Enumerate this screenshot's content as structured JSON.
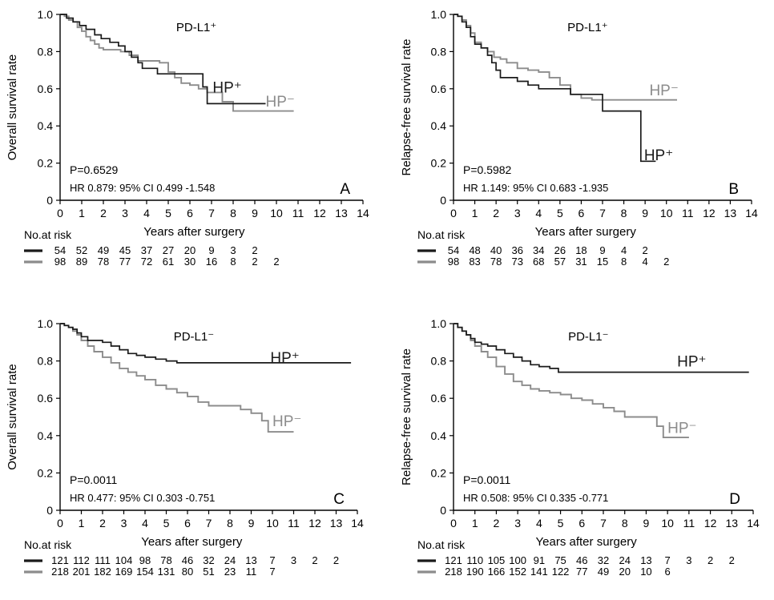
{
  "colors": {
    "hp_pos": "#1a1a1a",
    "hp_neg": "#8c8c8c",
    "axis": "#000000"
  },
  "chart_data": [
    {
      "type": "line",
      "title": "PD-L1⁺",
      "letter": "A",
      "xlabel": "Years after surgery",
      "ylabel": "Overall survival rate",
      "xlim": [
        0,
        14
      ],
      "ylim": [
        0,
        1.0
      ],
      "xticks": [
        "0",
        "1",
        "2",
        "3",
        "4",
        "5",
        "6",
        "7",
        "8",
        "9",
        "10",
        "11",
        "12",
        "13",
        "14"
      ],
      "yticks": [
        "0",
        "0.2",
        "0.4",
        "0.6",
        "0.8",
        "1.0"
      ],
      "p_value": "P=0.6529",
      "hr_text": "HR 0.879: 95% CI 0.499 -1.548",
      "series": [
        {
          "name": "HP⁺",
          "label_pos": [
            7.05,
            0.61
          ],
          "x": [
            0,
            0.3,
            0.6,
            0.9,
            1.2,
            1.6,
            1.9,
            2.3,
            2.7,
            3.0,
            3.3,
            3.6,
            3.8,
            4.5,
            5.2,
            5.8,
            6.4,
            6.6,
            6.8,
            7.5,
            8.5,
            9.5
          ],
          "y": [
            1.0,
            0.98,
            0.96,
            0.94,
            0.92,
            0.89,
            0.87,
            0.85,
            0.83,
            0.8,
            0.77,
            0.74,
            0.71,
            0.68,
            0.68,
            0.68,
            0.68,
            0.61,
            0.52,
            0.52,
            0.52,
            0.52
          ]
        },
        {
          "name": "HP⁻",
          "label_pos": [
            9.5,
            0.535
          ],
          "x": [
            0,
            0.2,
            0.4,
            0.6,
            0.8,
            1.0,
            1.2,
            1.4,
            1.6,
            1.8,
            2.0,
            2.4,
            2.8,
            3.2,
            3.6,
            4.0,
            4.6,
            5.0,
            5.3,
            5.6,
            6.0,
            6.4,
            6.8,
            7.5,
            8.0,
            9.0,
            10.0,
            10.8
          ],
          "y": [
            1.0,
            0.99,
            0.97,
            0.96,
            0.93,
            0.91,
            0.88,
            0.86,
            0.84,
            0.82,
            0.81,
            0.81,
            0.8,
            0.78,
            0.75,
            0.75,
            0.74,
            0.69,
            0.66,
            0.63,
            0.62,
            0.6,
            0.58,
            0.53,
            0.48,
            0.48,
            0.48,
            0.48
          ]
        }
      ],
      "risk_table": {
        "title": "No.at risk",
        "rows": [
          {
            "name": "HP⁺",
            "values": [
              "54",
              "52",
              "49",
              "45",
              "37",
              "27",
              "20",
              "9",
              "3",
              "2"
            ]
          },
          {
            "name": "HP⁻",
            "values": [
              "98",
              "89",
              "78",
              "77",
              "72",
              "61",
              "30",
              "16",
              "8",
              "2",
              "2"
            ]
          }
        ]
      }
    },
    {
      "type": "line",
      "title": "PD-L1⁺",
      "letter": "B",
      "xlabel": "Years after surgery",
      "ylabel": "Relapse-free survival  rate",
      "xlim": [
        0,
        14
      ],
      "ylim": [
        0,
        1.0
      ],
      "xticks": [
        "0",
        "1",
        "2",
        "3",
        "4",
        "5",
        "6",
        "7",
        "8",
        "9",
        "10",
        "11",
        "12",
        "13",
        "14"
      ],
      "yticks": [
        "0",
        "0.2",
        "0.4",
        "0.6",
        "0.8",
        "1.0"
      ],
      "p_value": "P=0.5982",
      "hr_text": "HR 1.149: 95% CI 0.683 -1.935",
      "series": [
        {
          "name": "HP⁺",
          "label_pos": [
            8.95,
            0.245
          ],
          "x": [
            0,
            0.2,
            0.4,
            0.6,
            0.8,
            1.0,
            1.3,
            1.6,
            1.8,
            2.0,
            2.2,
            2.5,
            3.0,
            3.5,
            4.0,
            4.5,
            5.0,
            5.5,
            6.0,
            6.5,
            7.0,
            8.0,
            8.8,
            9.5
          ],
          "y": [
            1.0,
            0.99,
            0.96,
            0.93,
            0.88,
            0.84,
            0.82,
            0.78,
            0.74,
            0.7,
            0.66,
            0.66,
            0.64,
            0.62,
            0.6,
            0.6,
            0.6,
            0.57,
            0.57,
            0.57,
            0.48,
            0.48,
            0.21,
            0.21
          ]
        },
        {
          "name": "HP⁻",
          "label_pos": [
            9.2,
            0.595
          ],
          "x": [
            0,
            0.2,
            0.4,
            0.6,
            0.8,
            1.0,
            1.3,
            1.6,
            1.9,
            2.2,
            2.5,
            3.0,
            3.5,
            4.0,
            4.5,
            5.0,
            5.5,
            6.0,
            6.5,
            7.0,
            8.0,
            9.0,
            10.5
          ],
          "y": [
            1.0,
            0.99,
            0.97,
            0.94,
            0.9,
            0.85,
            0.82,
            0.8,
            0.77,
            0.76,
            0.74,
            0.71,
            0.7,
            0.69,
            0.66,
            0.62,
            0.57,
            0.55,
            0.54,
            0.54,
            0.54,
            0.54,
            0.54
          ]
        }
      ],
      "risk_table": {
        "title": "No.at risk",
        "rows": [
          {
            "name": "HP⁺",
            "values": [
              "54",
              "48",
              "40",
              "36",
              "34",
              "26",
              "18",
              "9",
              "4",
              "2"
            ]
          },
          {
            "name": "HP⁻",
            "values": [
              "98",
              "83",
              "78",
              "73",
              "68",
              "57",
              "31",
              "15",
              "8",
              "4",
              "2"
            ]
          }
        ]
      }
    },
    {
      "type": "line",
      "title": "PD-L1⁻",
      "letter": "C",
      "xlabel": "Years after surgery",
      "ylabel": "Overall survival rate",
      "xlim": [
        0,
        14
      ],
      "ylim": [
        0,
        1.0
      ],
      "xticks": [
        "0",
        "1",
        "2",
        "3",
        "4",
        "5",
        "6",
        "7",
        "8",
        "9",
        "10",
        "11",
        "12",
        "13",
        "14"
      ],
      "yticks": [
        "0",
        "0.2",
        "0.4",
        "0.6",
        "0.8",
        "1.0"
      ],
      "p_value": "P=0.0011",
      "hr_text": "HR 0.477: 95% CI 0.303 -0.751",
      "series": [
        {
          "name": "HP⁺",
          "label_pos": [
            9.9,
            0.82
          ],
          "x": [
            0,
            0.2,
            0.4,
            0.6,
            0.8,
            1.0,
            1.3,
            1.6,
            2.0,
            2.4,
            2.8,
            3.2,
            3.6,
            4.0,
            4.5,
            5.0,
            5.5,
            6.0,
            8.0,
            10.0,
            12.0,
            13.7
          ],
          "y": [
            1.0,
            0.99,
            0.98,
            0.97,
            0.95,
            0.93,
            0.91,
            0.91,
            0.9,
            0.88,
            0.86,
            0.84,
            0.83,
            0.82,
            0.81,
            0.8,
            0.79,
            0.79,
            0.79,
            0.79,
            0.79,
            0.79
          ]
        },
        {
          "name": "HP⁻",
          "label_pos": [
            10.0,
            0.48
          ],
          "x": [
            0,
            0.2,
            0.4,
            0.6,
            0.8,
            1.0,
            1.3,
            1.6,
            2.0,
            2.4,
            2.8,
            3.2,
            3.6,
            4.0,
            4.5,
            5.0,
            5.5,
            6.0,
            6.5,
            7.0,
            7.5,
            8.0,
            8.5,
            9.0,
            9.5,
            9.8,
            10.5,
            11.0
          ],
          "y": [
            1.0,
            0.99,
            0.98,
            0.96,
            0.94,
            0.91,
            0.88,
            0.85,
            0.82,
            0.79,
            0.76,
            0.74,
            0.72,
            0.7,
            0.67,
            0.65,
            0.63,
            0.61,
            0.58,
            0.56,
            0.56,
            0.56,
            0.54,
            0.52,
            0.48,
            0.42,
            0.42,
            0.42
          ]
        }
      ],
      "risk_table": {
        "title": "No.at risk",
        "rows": [
          {
            "name": "HP⁺",
            "values": [
              "121",
              "112",
              "111",
              "104",
              "98",
              "78",
              "46",
              "32",
              "24",
              "13",
              "7",
              "3",
              "2",
              "2"
            ]
          },
          {
            "name": "HP⁻",
            "values": [
              "218",
              "201",
              "182",
              "169",
              "154",
              "131",
              "80",
              "51",
              "23",
              "11",
              "7"
            ]
          }
        ]
      }
    },
    {
      "type": "line",
      "title": "PD-L1⁻",
      "letter": "D",
      "xlabel": "Years after surgery",
      "ylabel": "Relapse-free survival  rate",
      "xlim": [
        0,
        14
      ],
      "ylim": [
        0,
        1.0
      ],
      "xticks": [
        "0",
        "1",
        "2",
        "3",
        "4",
        "5",
        "6",
        "7",
        "8",
        "9",
        "10",
        "11",
        "12",
        "13",
        "14"
      ],
      "yticks": [
        "0",
        "0.2",
        "0.4",
        "0.6",
        "0.8",
        "1.0"
      ],
      "p_value": "P=0.0011",
      "hr_text": "HR 0.508: 95% CI 0.335 -0.771",
      "series": [
        {
          "name": "HP⁺",
          "label_pos": [
            10.45,
            0.8
          ],
          "x": [
            0,
            0.2,
            0.4,
            0.6,
            0.8,
            1.0,
            1.3,
            1.6,
            2.0,
            2.4,
            2.8,
            3.2,
            3.6,
            4.0,
            4.5,
            4.9,
            6.0,
            8.0,
            10.0,
            12.0,
            13.8
          ],
          "y": [
            1.0,
            0.98,
            0.96,
            0.94,
            0.92,
            0.9,
            0.89,
            0.88,
            0.86,
            0.84,
            0.82,
            0.8,
            0.78,
            0.77,
            0.76,
            0.74,
            0.74,
            0.74,
            0.74,
            0.74,
            0.74
          ]
        },
        {
          "name": "HP⁻",
          "label_pos": [
            10.0,
            0.445
          ],
          "x": [
            0,
            0.2,
            0.4,
            0.6,
            0.8,
            1.0,
            1.3,
            1.6,
            2.0,
            2.4,
            2.8,
            3.2,
            3.6,
            4.0,
            4.5,
            5.0,
            5.5,
            6.0,
            6.5,
            7.0,
            7.5,
            8.0,
            8.5,
            9.0,
            9.5,
            9.8,
            10.5,
            11.0
          ],
          "y": [
            1.0,
            0.98,
            0.96,
            0.94,
            0.91,
            0.88,
            0.85,
            0.82,
            0.77,
            0.73,
            0.69,
            0.67,
            0.65,
            0.64,
            0.63,
            0.62,
            0.6,
            0.59,
            0.57,
            0.55,
            0.53,
            0.5,
            0.5,
            0.5,
            0.45,
            0.39,
            0.39,
            0.39
          ]
        }
      ],
      "risk_table": {
        "title": "No.at risk",
        "rows": [
          {
            "name": "HP⁺",
            "values": [
              "121",
              "110",
              "105",
              "100",
              "91",
              "75",
              "46",
              "32",
              "24",
              "13",
              "7",
              "3",
              "2",
              "2"
            ]
          },
          {
            "name": "HP⁻",
            "values": [
              "218",
              "190",
              "166",
              "152",
              "141",
              "122",
              "77",
              "49",
              "20",
              "10",
              "6"
            ]
          }
        ]
      }
    }
  ]
}
